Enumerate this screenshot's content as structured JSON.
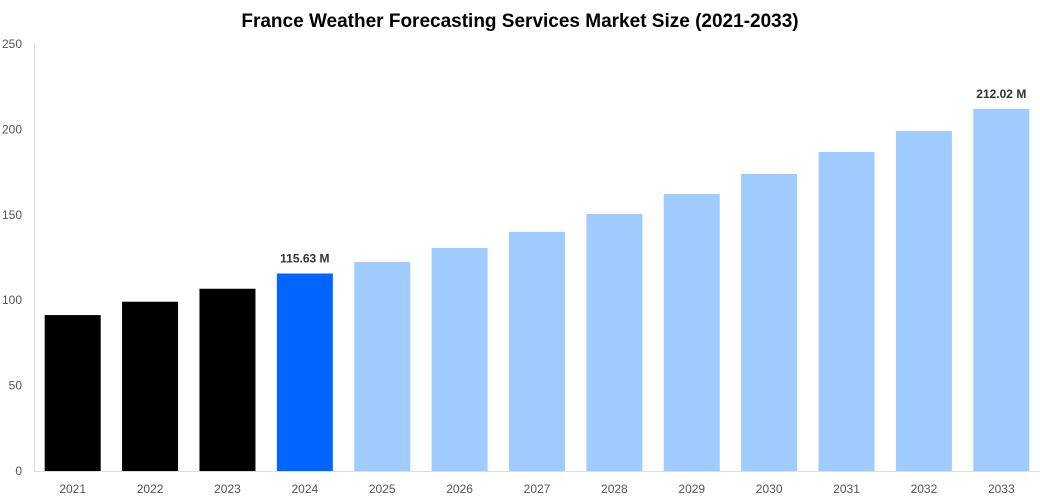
{
  "chart_data": {
    "type": "bar",
    "title": "France Weather Forecasting Services Market Size (2021-2033)",
    "xlabel": "",
    "ylabel": "",
    "categories": [
      "2021",
      "2022",
      "2023",
      "2024",
      "2025",
      "2026",
      "2027",
      "2028",
      "2029",
      "2030",
      "2031",
      "2032",
      "2033"
    ],
    "values": [
      91.3,
      99.1,
      106.7,
      115.63,
      122.4,
      130.6,
      140.0,
      150.5,
      162.2,
      173.9,
      186.8,
      199.0,
      212.02
    ],
    "colors": [
      "#000000",
      "#000000",
      "#000000",
      "#0066ff",
      "#a0cbff",
      "#a0cbff",
      "#a0cbff",
      "#a0cbff",
      "#a0cbff",
      "#a0cbff",
      "#a0cbff",
      "#a0cbff",
      "#a0cbff"
    ],
    "data_labels": {
      "3": "115.63 M",
      "12": "212.02 M"
    },
    "ylim": [
      0,
      250
    ],
    "yticks": [
      "0",
      "50",
      "100",
      "150",
      "200",
      "250"
    ],
    "grid": false,
    "legend": "none"
  }
}
